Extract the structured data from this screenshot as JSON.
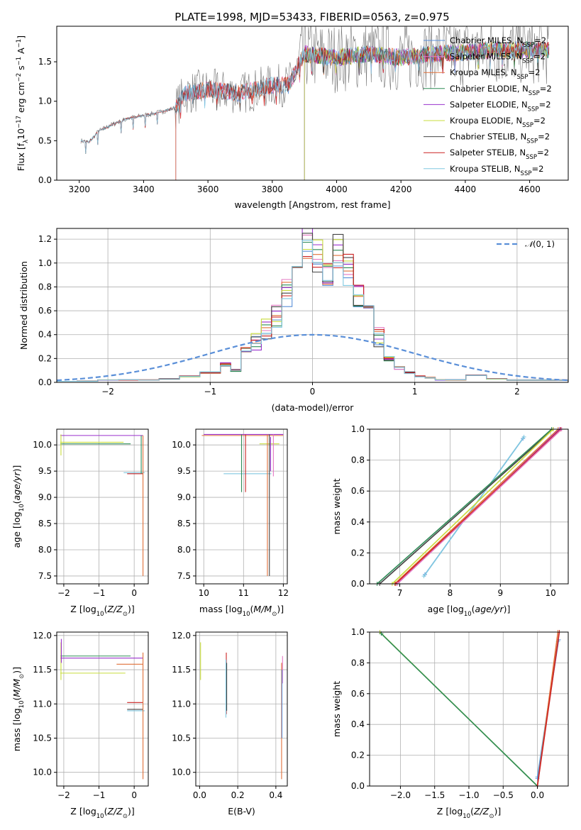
{
  "figure_title": "PLATE=1998, MJD=53433, FIBERID=0563, z=0.975",
  "series": [
    {
      "name": "Chabrier MILES, N_SSP=2",
      "short": "Chabrier MILES, N",
      "sub": "SSP",
      "tail": "=2",
      "color": "#5a8fd8"
    },
    {
      "name": "Salpeter MILES, N_SSP=2",
      "short": "Salpeter MILES, N",
      "sub": "SSP",
      "tail": "=2",
      "color": "#e377c2"
    },
    {
      "name": "Kroupa MILES, N_SSP=2",
      "short": "Kroupa MILES, N",
      "sub": "SSP",
      "tail": "=2",
      "color": "#e0703a"
    },
    {
      "name": "Chabrier ELODIE, N_SSP=2",
      "short": "Chabrier ELODIE, N",
      "sub": "SSP",
      "tail": "=2",
      "color": "#2e8b57"
    },
    {
      "name": "Salpeter ELODIE, N_SSP=2",
      "short": "Salpeter ELODIE, N",
      "sub": "SSP",
      "tail": "=2",
      "color": "#9a32cd"
    },
    {
      "name": "Kroupa ELODIE, N_SSP=2",
      "short": "Kroupa ELODIE, N",
      "sub": "SSP",
      "tail": "=2",
      "color": "#c8dc3c"
    },
    {
      "name": "Chabrier STELIB, N_SSP=2",
      "short": "Chabrier STELIB, N",
      "sub": "SSP",
      "tail": "=2",
      "color": "#444444"
    },
    {
      "name": "Salpeter STELIB, N_SSP=2",
      "short": "Salpeter STELIB, N",
      "sub": "SSP",
      "tail": "=2",
      "color": "#cc2222"
    },
    {
      "name": "Kroupa STELIB, N_SSP=2",
      "short": "Kroupa STELIB, N",
      "sub": "SSP",
      "tail": "=2",
      "color": "#80c8e0"
    }
  ],
  "chart_data": [
    {
      "id": "spectrum",
      "type": "line",
      "title": "PLATE=1998, MJD=53433, FIBERID=0563, z=0.975",
      "xlabel": "wavelength [Angstrom, rest frame]",
      "ylabel": "Flux [f_λ 10^-17 erg cm^-2 s^-1 A^-1]",
      "xlim": [
        3130,
        4720
      ],
      "ylim": [
        0,
        1.95
      ],
      "xticks": [
        3200,
        3400,
        3600,
        3800,
        4000,
        4200,
        4400,
        4600
      ],
      "yticks": [
        0.0,
        0.5,
        1.0,
        1.5
      ],
      "grid": false,
      "legend": "right",
      "data_range": [
        3205,
        4660
      ],
      "model_start": {
        "MILES": 3500,
        "ELODIE": 3900,
        "STELIB": 3205
      },
      "anchors": [
        [
          3205,
          0.5
        ],
        [
          3230,
          0.48
        ],
        [
          3260,
          0.62
        ],
        [
          3300,
          0.7
        ],
        [
          3350,
          0.78
        ],
        [
          3400,
          0.82
        ],
        [
          3450,
          0.86
        ],
        [
          3500,
          0.92
        ],
        [
          3530,
          1.1
        ],
        [
          3600,
          1.15
        ],
        [
          3700,
          1.1
        ],
        [
          3800,
          1.2
        ],
        [
          3850,
          1.2
        ],
        [
          3900,
          1.6
        ],
        [
          4000,
          1.55
        ],
        [
          4100,
          1.6
        ],
        [
          4200,
          1.55
        ],
        [
          4300,
          1.6
        ],
        [
          4400,
          1.62
        ],
        [
          4500,
          1.65
        ],
        [
          4660,
          1.65
        ]
      ]
    },
    {
      "id": "residuals",
      "type": "step",
      "xlabel": "(data-model)/error",
      "ylabel": "Normed distribution",
      "xlim": [
        -2.5,
        2.5
      ],
      "ylim": [
        0,
        1.29
      ],
      "xticks": [
        -2,
        -1,
        0,
        1,
        2
      ],
      "yticks": [
        0.0,
        0.2,
        0.4,
        0.6,
        0.8,
        1.0,
        1.2
      ],
      "grid": true,
      "legend": "top-right",
      "normal_label": "N(0,1)",
      "normal_color": "#5a8fd8",
      "bin_edges": [
        -2.5,
        -2.3,
        -2.1,
        -1.9,
        -1.7,
        -1.5,
        -1.3,
        -1.1,
        -0.9,
        -0.8,
        -0.7,
        -0.6,
        -0.5,
        -0.4,
        -0.3,
        -0.2,
        -0.1,
        0.0,
        0.1,
        0.2,
        0.3,
        0.4,
        0.5,
        0.6,
        0.7,
        0.8,
        0.9,
        1.0,
        1.1,
        1.2,
        1.3,
        1.5,
        1.7,
        1.9,
        2.5
      ],
      "hist_base": [
        0.01,
        0.01,
        0.02,
        0.02,
        0.02,
        0.03,
        0.05,
        0.08,
        0.15,
        0.1,
        0.28,
        0.33,
        0.45,
        0.55,
        0.75,
        0.85,
        1.15,
        1.05,
        0.95,
        1.12,
        0.95,
        0.75,
        0.58,
        0.38,
        0.2,
        0.12,
        0.08,
        0.05,
        0.04,
        0.02,
        0.02,
        0.06,
        0.03,
        0.02
      ]
    },
    {
      "id": "age-vs-z",
      "type": "errorbar",
      "xlabel": "Z [log10(Z/Z⊙)]",
      "ylabel": "age [log10(age/yr)]",
      "xlim": [
        -2.2,
        0.4
      ],
      "ylim": [
        7.35,
        10.3
      ],
      "xticks": [
        -2,
        -1,
        0
      ],
      "yticks": [
        7.5,
        8.0,
        8.5,
        9.0,
        9.5,
        10.0
      ],
      "grid": true,
      "segments": [
        {
          "s": 4,
          "x": [
            -2.1,
            0.25
          ],
          "y": 10.18
        },
        {
          "s": 3,
          "x": [
            -2.1,
            -0.1
          ],
          "y": 10.02
        },
        {
          "s": 5,
          "x": [
            -2.1,
            -0.3
          ],
          "y": 10.05
        },
        {
          "s": 7,
          "x": [
            -0.2,
            0.25
          ],
          "y": 9.45
        },
        {
          "s": 8,
          "x": [
            -0.3,
            0.3
          ],
          "y": 9.47
        },
        {
          "s": 2,
          "x": 0.25,
          "y": [
            7.5,
            10.18
          ]
        },
        {
          "s": 3,
          "x": 0.2,
          "y": [
            9.45,
            10.18
          ]
        },
        {
          "s": 5,
          "x": -2.08,
          "y": [
            9.8,
            10.2
          ]
        }
      ]
    },
    {
      "id": "age-vs-mass",
      "type": "errorbar",
      "xlabel": "mass [log10(M/M⊙)]",
      "ylabel": "",
      "xlim": [
        9.8,
        12.1
      ],
      "ylim": [
        7.35,
        10.3
      ],
      "xticks": [
        10,
        11,
        12
      ],
      "yticks": [
        7.5,
        8.0,
        8.5,
        9.0,
        9.5,
        10.0
      ],
      "grid": true,
      "segments": [
        {
          "s": 2,
          "x": [
            9.95,
            12.0
          ],
          "y": 10.18
        },
        {
          "s": 4,
          "x": [
            10.0,
            12.0
          ],
          "y": 10.2
        },
        {
          "s": 5,
          "x": [
            11.4,
            11.9
          ],
          "y": 10.02
        },
        {
          "s": 8,
          "x": [
            10.5,
            11.7
          ],
          "y": 9.45
        },
        {
          "s": 3,
          "x": 10.95,
          "y": [
            9.1,
            10.2
          ]
        },
        {
          "s": 7,
          "x": 11.05,
          "y": [
            9.1,
            10.2
          ]
        },
        {
          "s": 2,
          "x": 11.6,
          "y": [
            7.5,
            10.2
          ]
        },
        {
          "s": 1,
          "x": 11.75,
          "y": [
            9.4,
            10.2
          ]
        },
        {
          "s": 4,
          "x": 11.68,
          "y": [
            9.5,
            10.15
          ]
        },
        {
          "s": 6,
          "x": 11.65,
          "y": [
            7.5,
            10.2
          ]
        }
      ]
    },
    {
      "id": "mass-weight-vs-age",
      "type": "line",
      "xlabel": "age [log10(age/yr)]",
      "ylabel": "mass weight",
      "xlim": [
        6.4,
        10.35
      ],
      "ylim": [
        0,
        1.0
      ],
      "xticks": [
        7,
        8,
        9,
        10
      ],
      "yticks": [
        0.0,
        0.2,
        0.4,
        0.6,
        0.8,
        1.0
      ],
      "grid": true,
      "lines": [
        {
          "s": 0,
          "x": [
            7.5,
            9.45
          ],
          "y": [
            0.06,
            0.94
          ]
        },
        {
          "s": 8,
          "x": [
            7.48,
            9.47
          ],
          "y": [
            0.05,
            0.95
          ]
        },
        {
          "s": 3,
          "x": [
            6.55,
            10.02
          ],
          "y": [
            0.0,
            1.0
          ]
        },
        {
          "s": 6,
          "x": [
            6.6,
            10.05
          ],
          "y": [
            0.0,
            1.0
          ]
        },
        {
          "s": 5,
          "x": [
            6.85,
            10.05
          ],
          "y": [
            0.0,
            1.0
          ]
        },
        {
          "s": 2,
          "x": [
            6.9,
            10.15
          ],
          "y": [
            0.0,
            1.0
          ]
        },
        {
          "s": 4,
          "x": [
            6.95,
            10.18
          ],
          "y": [
            0.0,
            1.0
          ]
        },
        {
          "s": 7,
          "x": [
            6.92,
            10.2
          ],
          "y": [
            0.0,
            1.0
          ]
        },
        {
          "s": 1,
          "x": [
            6.95,
            10.22
          ],
          "y": [
            0.0,
            1.0
          ]
        }
      ]
    },
    {
      "id": "mass-vs-z",
      "type": "errorbar",
      "xlabel": "Z [log10(Z/Z⊙)]",
      "ylabel": "mass [log10(M/M⊙)]",
      "xlim": [
        -2.2,
        0.4
      ],
      "ylim": [
        9.8,
        12.05
      ],
      "xticks": [
        -2,
        -1,
        0
      ],
      "yticks": [
        10.0,
        10.5,
        11.0,
        11.5,
        12.0
      ],
      "grid": true,
      "segments": [
        {
          "s": 3,
          "x": [
            -2.1,
            -0.1
          ],
          "y": 11.7
        },
        {
          "s": 4,
          "x": [
            -2.1,
            0.25
          ],
          "y": 11.67
        },
        {
          "s": 2,
          "x": [
            -0.5,
            0.25
          ],
          "y": 11.58
        },
        {
          "s": 5,
          "x": [
            -2.1,
            -0.25
          ],
          "y": 11.45
        },
        {
          "s": 7,
          "x": [
            -0.2,
            0.25
          ],
          "y": 11.02
        },
        {
          "s": 6,
          "x": [
            -0.2,
            0.25
          ],
          "y": 10.92
        },
        {
          "s": 8,
          "x": [
            -0.2,
            0.3
          ],
          "y": 10.9
        },
        {
          "s": 2,
          "x": 0.25,
          "y": [
            9.9,
            11.75
          ]
        },
        {
          "s": 5,
          "x": -2.08,
          "y": [
            11.35,
            11.9
          ]
        },
        {
          "s": 4,
          "x": -2.07,
          "y": [
            11.6,
            11.95
          ]
        }
      ]
    },
    {
      "id": "mass-vs-ebv",
      "type": "errorbar",
      "xlabel": "E(B-V)",
      "ylabel": "",
      "xlim": [
        -0.02,
        0.46
      ],
      "ylim": [
        9.8,
        12.05
      ],
      "xticks": [
        0.0,
        0.2,
        0.4
      ],
      "yticks": [
        10.0,
        10.5,
        11.0,
        11.5,
        12.0
      ],
      "grid": true,
      "segments": [
        {
          "s": 5,
          "x": 0.005,
          "y": [
            11.35,
            11.9
          ]
        },
        {
          "s": 7,
          "x": 0.14,
          "y": [
            10.85,
            11.75
          ]
        },
        {
          "s": 8,
          "x": 0.138,
          "y": [
            10.8,
            11.65
          ]
        },
        {
          "s": 6,
          "x": 0.142,
          "y": [
            10.9,
            11.6
          ]
        },
        {
          "s": 2,
          "x": 0.43,
          "y": [
            9.9,
            11.6
          ]
        },
        {
          "s": 1,
          "x": 0.435,
          "y": [
            11.3,
            11.7
          ]
        },
        {
          "s": 0,
          "x": 0.432,
          "y": [
            10.5,
            11.5
          ]
        }
      ]
    },
    {
      "id": "mass-weight-vs-z",
      "type": "line",
      "xlabel": "Z [log10(Z/Z⊙)]",
      "ylabel": "mass weight",
      "xlim": [
        -2.45,
        0.45
      ],
      "ylim": [
        0,
        1.0
      ],
      "xticks": [
        -2.0,
        -1.5,
        -1.0,
        -0.5,
        0.0
      ],
      "yticks": [
        0.0,
        0.2,
        0.4,
        0.6,
        0.8,
        1.0
      ],
      "grid": true,
      "lines": [
        {
          "s": 5,
          "x": [
            -2.3,
            0.0
          ],
          "y": [
            1.0,
            0.0
          ]
        },
        {
          "s": 3,
          "x": [
            -2.28,
            0.0
          ],
          "y": [
            0.99,
            0.0
          ]
        },
        {
          "s": 8,
          "x": [
            0.0,
            0.3
          ],
          "y": [
            0.06,
            0.94
          ]
        },
        {
          "s": 0,
          "x": [
            0.0,
            0.31
          ],
          "y": [
            0.05,
            0.95
          ]
        },
        {
          "s": 2,
          "x": [
            0.0,
            0.3
          ],
          "y": [
            0.0,
            1.0
          ]
        },
        {
          "s": 7,
          "x": [
            0.0,
            0.32
          ],
          "y": [
            0.0,
            1.0
          ]
        }
      ]
    }
  ]
}
